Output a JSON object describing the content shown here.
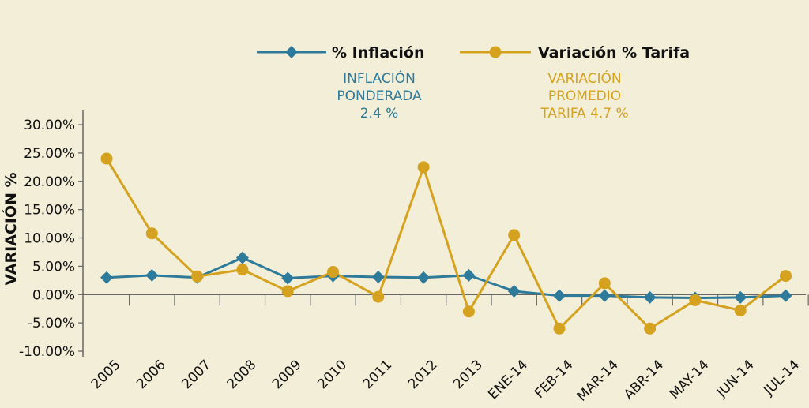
{
  "chart_data": {
    "type": "line",
    "categories": [
      "2005",
      "2006",
      "2007",
      "2008",
      "2009",
      "2010",
      "2011",
      "2012",
      "2013",
      "ENE-14",
      "FEB-14",
      "MAR-14",
      "ABR-14",
      "MAY-14",
      "JUN-14",
      "JUL-14"
    ],
    "ylabel": "VARIACIÓN %",
    "ylim": [
      -10,
      30
    ],
    "ytick_labels": [
      "30.00%",
      "25.00%",
      "20.00%",
      "15.00%",
      "10.00%",
      "5.00%",
      "0.00%",
      "-5.00%",
      "-10.00%"
    ],
    "ytick_values": [
      30,
      25,
      20,
      15,
      10,
      5,
      0,
      -5,
      -10
    ],
    "legend_position": "top",
    "series": [
      {
        "name": "% Inflación",
        "color": "#2d7a9a",
        "marker": "diamond",
        "values": [
          3.0,
          3.4,
          3.0,
          6.5,
          2.9,
          3.3,
          3.1,
          3.0,
          3.4,
          0.6,
          -0.2,
          -0.2,
          -0.5,
          -0.6,
          -0.5,
          -0.2
        ]
      },
      {
        "name": "Variación % Tarifa",
        "color": "#d4a21f",
        "marker": "circle",
        "values": [
          24.0,
          10.8,
          3.2,
          4.4,
          0.6,
          4.0,
          -0.4,
          22.5,
          -3.0,
          10.5,
          -6.0,
          2.0,
          -6.0,
          -1.0,
          -2.8,
          3.3
        ]
      }
    ],
    "annotations": [
      {
        "lines": [
          "INFLACIÓN",
          "PONDERADA",
          "2.4 %"
        ],
        "color": "#2d7a9a"
      },
      {
        "lines": [
          "VARIACIÓN",
          "PROMEDIO",
          "TARIFA 4.7 %"
        ],
        "color": "#d4a21f"
      }
    ]
  }
}
